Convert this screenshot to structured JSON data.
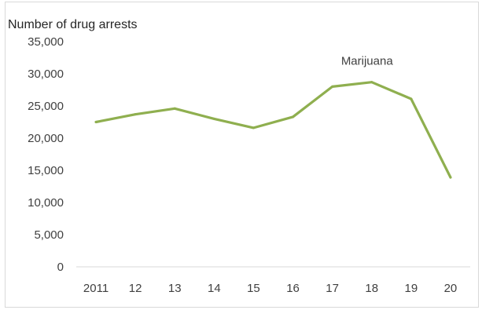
{
  "chart_data": {
    "type": "line",
    "ylabel": "Number of drug arrests",
    "categories": [
      "2011",
      "12",
      "13",
      "14",
      "15",
      "16",
      "17",
      "18",
      "19",
      "20"
    ],
    "series": [
      {
        "name": "Marijuana",
        "values": [
          22500,
          23700,
          24600,
          23000,
          21600,
          23300,
          28000,
          28700,
          26100,
          13900
        ],
        "color": "#8faf4f"
      }
    ],
    "yticks": [
      "0",
      "5,000",
      "10,000",
      "15,000",
      "20,000",
      "25,000",
      "30,000",
      "35,000"
    ],
    "ylim": [
      0,
      35000
    ],
    "grid": false,
    "legend": "none"
  }
}
